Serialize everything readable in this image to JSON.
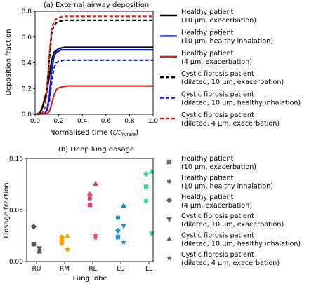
{
  "chart_data": [
    {
      "type": "line",
      "title": "(a) External airway deposition",
      "xlabel": "Normalised time (",
      "xlabel_math": "t/t",
      "xlabel_sub": "inhale",
      "xlabel_close": ")",
      "ylabel": "Deposition fraction",
      "xlim": [
        0,
        1
      ],
      "ylim": [
        0,
        0.8
      ],
      "xticks": [
        "0.0",
        "0.2",
        "0.4",
        "0.6",
        "0.8",
        "1.0"
      ],
      "yticks": [
        "0.0",
        "0.2",
        "0.4",
        "0.6",
        "0.8"
      ],
      "legend_position": "right",
      "series": [
        {
          "name": [
            "Healthy patient",
            "(10 µm, exacerbation)"
          ],
          "color": "#000000",
          "style": "solid",
          "x": [
            0,
            0.04,
            0.06,
            0.08,
            0.1,
            0.12,
            0.14,
            0.16,
            0.2,
            0.25,
            0.3,
            1.0
          ],
          "y": [
            0,
            0.01,
            0.05,
            0.12,
            0.18,
            0.3,
            0.42,
            0.48,
            0.51,
            0.52,
            0.52,
            0.52
          ]
        },
        {
          "name": [
            "Healthy patient",
            "(10 µm, healthy inhalation)"
          ],
          "color": "#0a1adc",
          "style": "solid",
          "x": [
            0,
            0.08,
            0.1,
            0.12,
            0.14,
            0.16,
            0.18,
            0.22,
            0.26,
            0.3,
            1.0
          ],
          "y": [
            0,
            0.005,
            0.03,
            0.14,
            0.34,
            0.45,
            0.48,
            0.5,
            0.5,
            0.5,
            0.5
          ]
        },
        {
          "name": [
            "Healthy patient",
            "(4 µm, exacerbation)"
          ],
          "color": "#e32020",
          "style": "solid",
          "x": [
            0,
            0.1,
            0.12,
            0.14,
            0.16,
            0.18,
            0.2,
            0.24,
            0.28,
            0.3,
            1.0
          ],
          "y": [
            0,
            0.005,
            0.02,
            0.08,
            0.15,
            0.19,
            0.205,
            0.215,
            0.22,
            0.22,
            0.22
          ]
        },
        {
          "name": [
            "Cystic fibrosis patient",
            "(dilated, 10 µm, exacerbation)"
          ],
          "color": "#000000",
          "style": "dashed",
          "x": [
            0,
            0.04,
            0.06,
            0.08,
            0.1,
            0.12,
            0.14,
            0.16,
            0.18,
            0.2,
            0.25,
            0.3,
            1.0
          ],
          "y": [
            0,
            0.01,
            0.04,
            0.1,
            0.2,
            0.42,
            0.63,
            0.69,
            0.71,
            0.72,
            0.73,
            0.73,
            0.73
          ]
        },
        {
          "name": [
            "Cystic fibrosis patient",
            "(dilated, 10 µm, healthy inhalation)"
          ],
          "color": "#0a1adc",
          "style": "dashed",
          "x": [
            0,
            0.08,
            0.1,
            0.12,
            0.14,
            0.16,
            0.18,
            0.2,
            0.24,
            0.28,
            0.3,
            1.0
          ],
          "y": [
            0,
            0.005,
            0.03,
            0.1,
            0.25,
            0.36,
            0.4,
            0.41,
            0.42,
            0.42,
            0.42,
            0.42
          ]
        },
        {
          "name": [
            "Cystic fibrosis patient",
            "(dilated, 4 µm, exacerbation)"
          ],
          "color": "#e32020",
          "style": "dashed",
          "x": [
            0,
            0.06,
            0.08,
            0.1,
            0.12,
            0.14,
            0.16,
            0.18,
            0.2,
            0.24,
            0.3,
            1.0
          ],
          "y": [
            0,
            0.01,
            0.04,
            0.16,
            0.46,
            0.66,
            0.72,
            0.74,
            0.75,
            0.76,
            0.76,
            0.76
          ]
        }
      ]
    },
    {
      "type": "scatter",
      "title": "(b) Deep lung dosage",
      "xlabel": "Lung lobe",
      "ylabel": "Dosage fraction",
      "categories": [
        "RU",
        "RM",
        "RL",
        "LU",
        "LL"
      ],
      "category_colors": [
        "#555555",
        "#f5a400",
        "#e63f7a",
        "#1a8fd6",
        "#3dd6a8"
      ],
      "ylim": [
        0,
        0.16
      ],
      "yticks": [
        "0.00",
        "0.08",
        "0.16"
      ],
      "legend_position": "right",
      "series": [
        {
          "name": [
            "Healthy patient",
            "(10 µm, exacerbation)"
          ],
          "marker": "square",
          "values": [
            0.027,
            0.033,
            0.088,
            0.038,
            0.116
          ]
        },
        {
          "name": [
            "Healthy patient",
            "(10 µm, healthy inhalation)"
          ],
          "marker": "circle",
          "values": [
            0.027,
            0.028,
            0.098,
            0.068,
            0.094
          ]
        },
        {
          "name": [
            "Healthy patient",
            "(4 µm, exacerbation)"
          ],
          "marker": "diamond",
          "values": [
            0.054,
            0.038,
            0.104,
            0.048,
            0.136
          ]
        },
        {
          "name": [
            "Cystic fibrosis patient",
            "(dilated, 10 µm, exacerbation)"
          ],
          "marker": "triangle-down",
          "values": [
            0.02,
            0.018,
            0.04,
            0.055,
            0.043
          ]
        },
        {
          "name": [
            "Cystic fibrosis patient",
            "(dilated, 10 µm, healthy inhalation)"
          ],
          "marker": "triangle-up",
          "values": [
            0.016,
            0.04,
            0.121,
            0.087,
            0.14
          ]
        },
        {
          "name": [
            "Cystic fibrosis patient",
            "(dilated, 4 µm, exacerbation)"
          ],
          "marker": "star",
          "values": [
            0.016,
            0.019,
            0.037,
            0.03,
            0.044
          ]
        }
      ]
    }
  ]
}
